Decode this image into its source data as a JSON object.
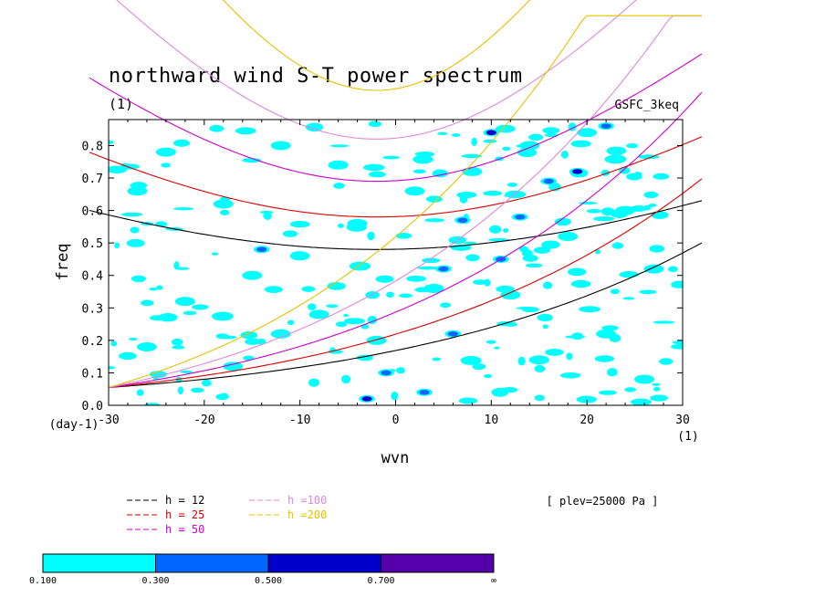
{
  "figure": {
    "title": "northward wind S-T power spectrum",
    "title_unit": "(1)",
    "source": "GSFC_3keq",
    "level_note": "[ plev=25000 Pa ]"
  },
  "chart_data": {
    "type": "contour",
    "xlabel": "wvn",
    "ylabel": "freq",
    "x_unit": "(1)",
    "y_unit": "(day-1)",
    "xlim": [
      -30,
      30
    ],
    "ylim": [
      0,
      0.88
    ],
    "x_ticks": [
      "-30",
      "-20",
      "-10",
      "0",
      "10",
      "20",
      "30"
    ],
    "y_ticks": [
      "0.0",
      "0.1",
      "0.2",
      "0.3",
      "0.4",
      "0.5",
      "0.6",
      "0.7",
      "0.8"
    ],
    "legend": [
      {
        "label": "h = 12",
        "color": "#000000"
      },
      {
        "label": "h = 25",
        "color": "#dd0000"
      },
      {
        "label": "h = 50",
        "color": "#cc00cc"
      },
      {
        "label": "h =100",
        "color": "#dd88dd"
      },
      {
        "label": "h =200",
        "color": "#e8c000"
      }
    ],
    "colorbar": {
      "levels": [
        "0.100",
        "0.300",
        "0.500",
        "0.700",
        "∞"
      ],
      "colors": [
        "#00ffff",
        "#0066ff",
        "#0000cc",
        "#5500aa"
      ]
    },
    "dispersion_curves": [
      {
        "h": 12,
        "color": "#000000",
        "min_freq": 0.48,
        "min_at_wvn": -2
      },
      {
        "h": 25,
        "color": "#dd0000",
        "min_freq": 0.58,
        "min_at_wvn": -2
      },
      {
        "h": 50,
        "color": "#cc00cc",
        "min_freq": 0.69,
        "min_at_wvn": -2
      },
      {
        "h": 100,
        "color": "#dd88dd",
        "min_freq": 0.82,
        "min_at_wvn": -2
      },
      {
        "h": 200,
        "color": "#e8c000",
        "min_freq": 0.97,
        "min_at_wvn": -2
      }
    ],
    "shaded_regions": [
      {
        "wvn": -24,
        "freq": 0.78,
        "level": 1
      },
      {
        "wvn": -18,
        "freq": 0.62,
        "level": 1
      },
      {
        "wvn": -27,
        "freq": 0.66,
        "level": 1
      },
      {
        "wvn": -12,
        "freq": 0.8,
        "level": 1
      },
      {
        "wvn": -6,
        "freq": 0.74,
        "level": 1
      },
      {
        "wvn": -15,
        "freq": 0.4,
        "level": 1
      },
      {
        "wvn": -22,
        "freq": 0.32,
        "level": 1
      },
      {
        "wvn": -8,
        "freq": 0.28,
        "level": 1
      },
      {
        "wvn": -26,
        "freq": 0.18,
        "level": 1
      },
      {
        "wvn": -17,
        "freq": 0.12,
        "level": 1
      },
      {
        "wvn": -10,
        "freq": 0.46,
        "level": 1
      },
      {
        "wvn": -4,
        "freq": 0.56,
        "level": 1
      },
      {
        "wvn": 2,
        "freq": 0.66,
        "level": 1
      },
      {
        "wvn": 4,
        "freq": 0.36,
        "level": 1
      },
      {
        "wvn": 12,
        "freq": 0.34,
        "level": 1
      },
      {
        "wvn": 18,
        "freq": 0.52,
        "level": 1
      },
      {
        "wvn": 24,
        "freq": 0.6,
        "level": 1
      },
      {
        "wvn": 27,
        "freq": 0.42,
        "level": 1
      },
      {
        "wvn": 22,
        "freq": 0.22,
        "level": 1
      },
      {
        "wvn": 15,
        "freq": 0.14,
        "level": 1
      },
      {
        "wvn": 26,
        "freq": 0.08,
        "level": 1
      },
      {
        "wvn": 8,
        "freq": 0.72,
        "level": 1
      },
      {
        "wvn": 14,
        "freq": 0.8,
        "level": 1
      },
      {
        "wvn": 20,
        "freq": 0.84,
        "level": 1
      },
      {
        "wvn": -2,
        "freq": 0.2,
        "level": 1
      },
      {
        "wvn": -12,
        "freq": 0.22,
        "level": 1
      },
      {
        "wvn": 6,
        "freq": 0.22,
        "level": 2
      },
      {
        "wvn": 7,
        "freq": 0.57,
        "level": 2
      },
      {
        "wvn": 10,
        "freq": 0.84,
        "level": 3
      },
      {
        "wvn": 13,
        "freq": 0.58,
        "level": 2
      },
      {
        "wvn": 19,
        "freq": 0.72,
        "level": 3
      },
      {
        "wvn": 3,
        "freq": 0.04,
        "level": 2
      },
      {
        "wvn": -3,
        "freq": 0.02,
        "level": 3
      },
      {
        "wvn": 5,
        "freq": 0.42,
        "level": 2
      },
      {
        "wvn": 11,
        "freq": 0.45,
        "level": 2
      },
      {
        "wvn": -14,
        "freq": 0.48,
        "level": 2
      },
      {
        "wvn": 22,
        "freq": 0.86,
        "level": 2
      },
      {
        "wvn": -1,
        "freq": 0.1,
        "level": 2
      },
      {
        "wvn": 16,
        "freq": 0.69,
        "level": 2
      }
    ]
  }
}
